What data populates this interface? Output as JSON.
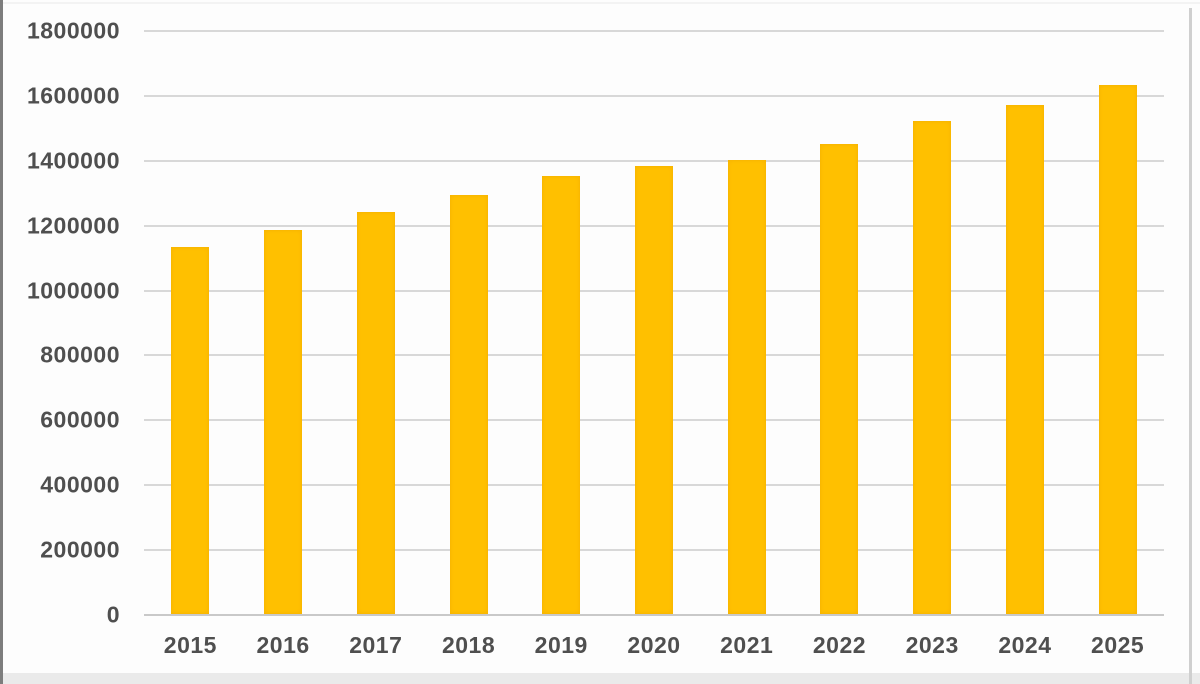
{
  "chart_data": {
    "type": "bar",
    "title": "",
    "xlabel": "",
    "ylabel": "",
    "categories": [
      "2015",
      "2016",
      "2017",
      "2018",
      "2019",
      "2020",
      "2021",
      "2022",
      "2023",
      "2024",
      "2025"
    ],
    "values": [
      1130000,
      1185000,
      1240000,
      1290000,
      1350000,
      1380000,
      1400000,
      1450000,
      1520000,
      1570000,
      1630000
    ],
    "ylim": [
      0,
      1800000
    ],
    "ytick_step": 200000,
    "ytick_labels": [
      "0",
      "200000",
      "400000",
      "600000",
      "800000",
      "1000000",
      "1200000",
      "1400000",
      "1600000",
      "1800000"
    ],
    "grid": true,
    "legend": false,
    "bar_color": "#ffc000",
    "gridline_color": "#d8d8d8",
    "axis_text_color": "#4f4f4f"
  }
}
